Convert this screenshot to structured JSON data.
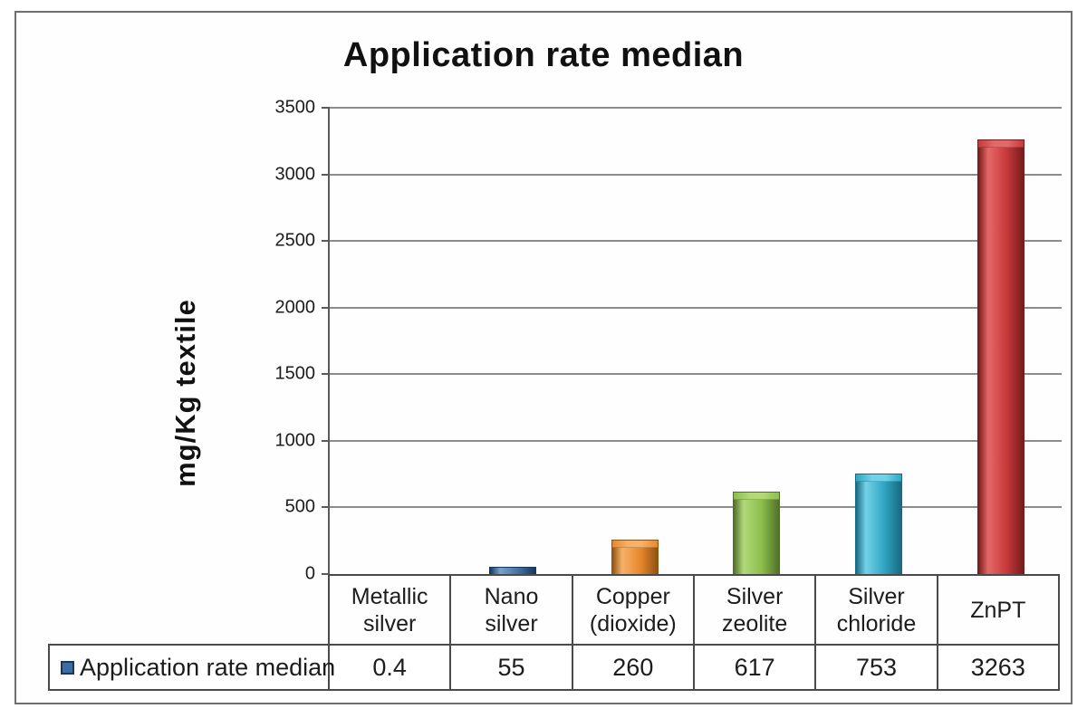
{
  "chart": {
    "title": "Application rate median",
    "ylabel": "mg/Kg textile"
  },
  "legend": {
    "label": "Application rate median",
    "swatch_color": "#3A6FA0",
    "swatch_border_color": "#17375E",
    "position": "bottom-left"
  },
  "chart_data": {
    "type": "bar",
    "title": "Application rate median",
    "xlabel": "",
    "ylabel": "mg/Kg textile",
    "categories": [
      "Metallic silver",
      "Nano silver",
      "Copper (dioxide)",
      "Silver zeolite",
      "Silver chloride",
      "ZnPT"
    ],
    "series": [
      {
        "name": "Application rate median",
        "values": [
          0.4,
          55,
          260,
          617,
          753,
          3263
        ]
      }
    ],
    "value_labels": [
      "0.4",
      "55",
      "260",
      "617",
      "753",
      "3263"
    ],
    "ylim": [
      0,
      3500
    ],
    "ytick_step": 500,
    "ytick_labels": [
      "0",
      "500",
      "1000",
      "1500",
      "2000",
      "2500",
      "3000",
      "3500"
    ],
    "grid": true,
    "legend_position": "bottom-left",
    "bar_colors": [
      {
        "main": "#4472A4",
        "light": "#7BA0CC",
        "dark": "#17375E"
      },
      {
        "main": "#4472A4",
        "light": "#7BA0CC",
        "dark": "#17375E"
      },
      {
        "main": "#E8872B",
        "light": "#F7B269",
        "dark": "#8F5314"
      },
      {
        "main": "#8CBE4B",
        "light": "#B2D878",
        "dark": "#50702A"
      },
      {
        "main": "#31A5C3",
        "light": "#72D2E8",
        "dark": "#176A81"
      },
      {
        "main": "#C8393B",
        "light": "#E46868",
        "dark": "#761C1C"
      }
    ]
  }
}
